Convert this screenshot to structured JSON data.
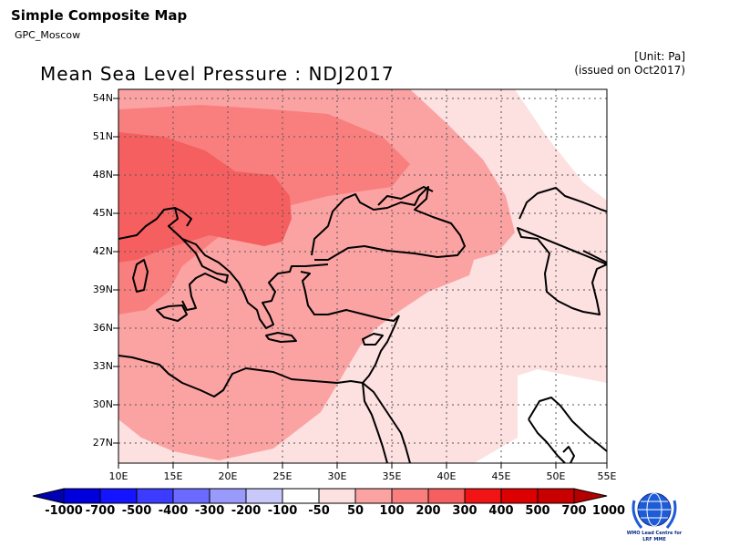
{
  "header": {
    "app_title": "Simple Composite Map",
    "subtitle": "GPC_Moscow",
    "unit": "[Unit: Pa]",
    "issued": "(issued on Oct2017)",
    "map_title": "Mean Sea Level Pressure : NDJ2017"
  },
  "map": {
    "lat_labels": [
      "54N",
      "51N",
      "48N",
      "45N",
      "42N",
      "39N",
      "36N",
      "33N",
      "30N",
      "27N"
    ],
    "lon_labels": [
      "10E",
      "15E",
      "20E",
      "25E",
      "30E",
      "35E",
      "40E",
      "45E",
      "50E",
      "55E"
    ],
    "colors": {
      "anom_50_100": "#fde0e0",
      "anom_100_200": "#fba3a3",
      "anom_200_300": "#f97f7f",
      "anom_300_400": "#f65f5f",
      "coast": "#000000",
      "grid": "#555555"
    }
  },
  "colorbar": {
    "labels": [
      "-1000",
      "-700",
      "-500",
      "-400",
      "-300",
      "-200",
      "-100",
      "-50",
      "50",
      "100",
      "200",
      "300",
      "400",
      "500",
      "700",
      "1000"
    ],
    "colors": [
      "#0000b4",
      "#0000dc",
      "#1414ff",
      "#3c3cff",
      "#6a6aff",
      "#9a9afd",
      "#c8c8fb",
      "#ffffff",
      "#fde0e0",
      "#fba3a3",
      "#f97f7f",
      "#f65f5f",
      "#f01414",
      "#dc0000",
      "#b40000"
    ]
  },
  "logo": {
    "line1": "WMO Lead Centre for",
    "line2": "LRF MME",
    "icon": "wmo-emblem-icon"
  }
}
